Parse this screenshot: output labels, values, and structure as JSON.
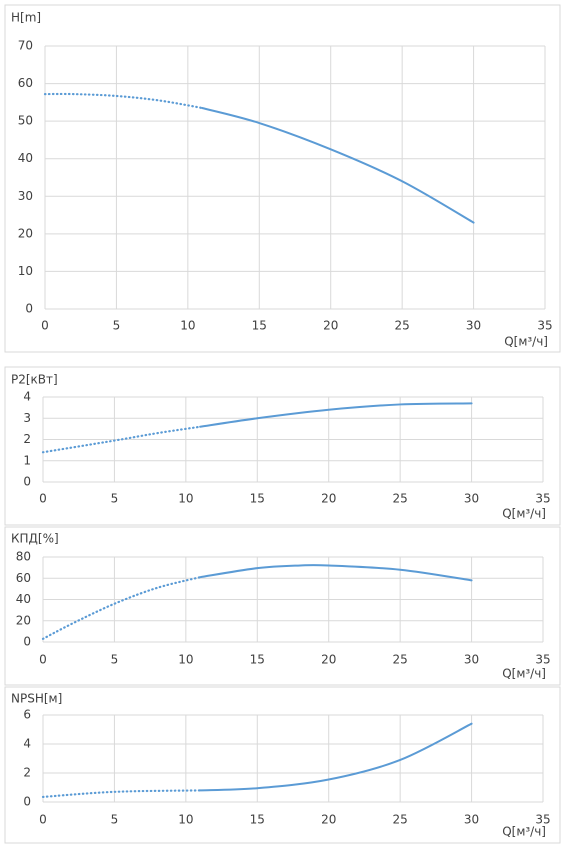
{
  "chart_data": [
    {
      "type": "line",
      "y_label": "H[m]",
      "x_label": "Q[м³/ч]",
      "xlim": [
        0,
        35
      ],
      "xticks": [
        0,
        5,
        10,
        15,
        20,
        25,
        30,
        35
      ],
      "ylim": [
        0,
        70
      ],
      "yticks": [
        0,
        10,
        20,
        30,
        40,
        50,
        60,
        70
      ],
      "grid": true,
      "series": [
        {
          "color": "#5b9bd5",
          "style": "dotted",
          "x": [
            0,
            2,
            5,
            8,
            11
          ],
          "values": [
            57.2,
            57.2,
            56.7,
            55.5,
            53.5
          ]
        },
        {
          "color": "#5b9bd5",
          "style": "solid",
          "x": [
            11,
            15,
            20,
            25,
            30
          ],
          "values": [
            53.5,
            49.5,
            42.5,
            34,
            23
          ]
        }
      ]
    },
    {
      "type": "line",
      "y_label": "P2[кВт]",
      "x_label": "Q[м³/ч]",
      "xlim": [
        0,
        35
      ],
      "xticks": [
        0,
        5,
        10,
        15,
        20,
        25,
        30,
        35
      ],
      "ylim": [
        0,
        4
      ],
      "yticks": [
        0,
        1,
        2,
        3,
        4
      ],
      "grid": true,
      "series": [
        {
          "color": "#5b9bd5",
          "style": "dotted",
          "x": [
            0,
            5,
            8,
            11
          ],
          "values": [
            1.4,
            1.95,
            2.3,
            2.6
          ]
        },
        {
          "color": "#5b9bd5",
          "style": "solid",
          "x": [
            11,
            15,
            20,
            25,
            30
          ],
          "values": [
            2.6,
            3.0,
            3.4,
            3.65,
            3.7
          ]
        }
      ]
    },
    {
      "type": "line",
      "y_label": "КПД[%]",
      "x_label": "Q[м³/ч]",
      "xlim": [
        0,
        35
      ],
      "xticks": [
        0,
        5,
        10,
        15,
        20,
        25,
        30,
        35
      ],
      "ylim": [
        0,
        80
      ],
      "yticks": [
        0,
        20,
        40,
        60,
        80
      ],
      "grid": true,
      "series": [
        {
          "color": "#5b9bd5",
          "style": "dotted",
          "x": [
            0,
            2,
            5,
            8,
            11
          ],
          "values": [
            3,
            17,
            36,
            51,
            61
          ]
        },
        {
          "color": "#5b9bd5",
          "style": "solid",
          "x": [
            11,
            15,
            18,
            20,
            25,
            30
          ],
          "values": [
            61,
            69.5,
            72,
            72,
            68,
            58
          ]
        }
      ]
    },
    {
      "type": "line",
      "y_label": "NPSH[м]",
      "x_label": "Q[м³/ч]",
      "xlim": [
        0,
        35
      ],
      "xticks": [
        0,
        5,
        10,
        15,
        20,
        25,
        30,
        35
      ],
      "ylim": [
        0,
        6
      ],
      "yticks": [
        0,
        2,
        4,
        6
      ],
      "grid": true,
      "series": [
        {
          "color": "#5b9bd5",
          "style": "dotted",
          "x": [
            0,
            5,
            11
          ],
          "values": [
            0.35,
            0.7,
            0.8
          ]
        },
        {
          "color": "#5b9bd5",
          "style": "solid",
          "x": [
            11,
            15,
            20,
            25,
            30
          ],
          "values": [
            0.8,
            0.95,
            1.55,
            2.9,
            5.4
          ]
        }
      ]
    }
  ]
}
